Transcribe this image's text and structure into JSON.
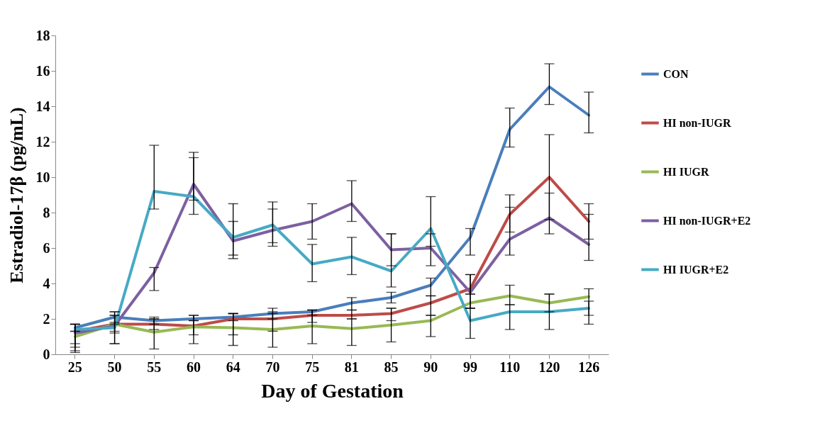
{
  "chart_data": {
    "type": "line",
    "xlabel": "Day of Gestation",
    "ylabel": "Estradiol-17β (pg/mL)",
    "categories": [
      "25",
      "50",
      "55",
      "60",
      "64",
      "70",
      "75",
      "81",
      "85",
      "90",
      "99",
      "110",
      "120",
      "126"
    ],
    "ylim": [
      0,
      18
    ],
    "yticks": [
      0,
      2,
      4,
      6,
      8,
      10,
      12,
      14,
      16,
      18
    ],
    "grid": false,
    "legend": "right",
    "marker": "none",
    "line_style": "solid",
    "series": [
      {
        "name": "CON",
        "color": "#4a7ebb",
        "values": [
          1.5,
          2.1,
          1.9,
          2.0,
          2.1,
          2.3,
          2.4,
          2.9,
          3.2,
          3.9,
          6.6,
          12.7,
          15.1,
          13.5
        ],
        "errors": [
          [
            1.3,
            1.7
          ],
          [
            1.7,
            2.4
          ],
          [
            1.7,
            2.1
          ],
          [
            1.9,
            2.2
          ],
          [
            1.9,
            2.3
          ],
          [
            2.0,
            2.6
          ],
          [
            2.2,
            2.5
          ],
          [
            2.5,
            3.2
          ],
          [
            2.9,
            3.5
          ],
          [
            3.3,
            4.3
          ],
          [
            5.6,
            7.1
          ],
          [
            11.7,
            13.9
          ],
          [
            14.1,
            16.4
          ],
          [
            12.5,
            14.8
          ]
        ]
      },
      {
        "name": "HI non-IUGR",
        "color": "#be4b48",
        "values": [
          1.3,
          1.7,
          1.7,
          1.6,
          2.0,
          2.0,
          2.2,
          2.2,
          2.3,
          2.9,
          3.7,
          7.9,
          10.0,
          7.5
        ],
        "errors": [
          [
            0.6,
            1.7
          ],
          [
            1.2,
            2.2
          ],
          [
            1.4,
            2.0
          ],
          [
            0.6,
            2.2
          ],
          [
            1.1,
            2.3
          ],
          [
            1.3,
            2.4
          ],
          [
            1.8,
            2.5
          ],
          [
            2.0,
            2.5
          ],
          [
            1.9,
            2.6
          ],
          [
            2.2,
            3.3
          ],
          [
            3.4,
            4.5
          ],
          [
            6.9,
            9.0
          ],
          [
            7.6,
            12.4
          ],
          [
            6.5,
            8.5
          ]
        ]
      },
      {
        "name": "HI IUGR",
        "color": "#98b954",
        "values": [
          1.0,
          1.7,
          1.25,
          1.55,
          1.5,
          1.4,
          1.6,
          1.45,
          1.65,
          1.9,
          2.9,
          3.3,
          2.9,
          3.25
        ],
        "errors": [
          [
            0.1,
            1.3
          ],
          [
            0.6,
            2.2
          ],
          [
            0.3,
            2.0
          ],
          [
            1.1,
            1.9
          ],
          [
            0.5,
            2.3
          ],
          [
            0.4,
            2.3
          ],
          [
            0.6,
            2.5
          ],
          [
            0.5,
            2.0
          ],
          [
            0.7,
            2.6
          ],
          [
            1.0,
            2.2
          ],
          [
            2.6,
            3.4
          ],
          [
            2.8,
            3.9
          ],
          [
            2.4,
            3.4
          ],
          [
            2.2,
            3.7
          ]
        ]
      },
      {
        "name": "HI non-IUGR+E2",
        "color": "#7d60a0",
        "values": [
          1.2,
          1.6,
          4.6,
          9.6,
          6.4,
          7.0,
          7.5,
          8.5,
          5.9,
          6.0,
          3.5,
          6.5,
          7.7,
          6.2
        ],
        "errors": [
          [
            0.2,
            1.7
          ],
          [
            0.6,
            2.4
          ],
          [
            3.6,
            4.9
          ],
          [
            7.9,
            11.4
          ],
          [
            5.4,
            7.5
          ],
          [
            6.1,
            8.2
          ],
          [
            6.5,
            8.5
          ],
          [
            7.5,
            9.8
          ],
          [
            5.0,
            6.8
          ],
          [
            5.0,
            6.8
          ],
          [
            2.6,
            4.5
          ],
          [
            5.6,
            8.3
          ],
          [
            6.8,
            9.1
          ],
          [
            5.3,
            7.9
          ]
        ]
      },
      {
        "name": "HI IUGR+E2",
        "color": "#46aac5",
        "values": [
          1.4,
          1.5,
          9.2,
          8.9,
          6.6,
          7.3,
          5.1,
          5.5,
          4.7,
          7.1,
          1.9,
          2.4,
          2.4,
          2.6
        ],
        "errors": [
          [
            0.4,
            1.7
          ],
          [
            1.3,
            1.8
          ],
          [
            8.2,
            11.8
          ],
          [
            8.7,
            11.1
          ],
          [
            5.6,
            8.5
          ],
          [
            6.3,
            8.6
          ],
          [
            4.1,
            6.2
          ],
          [
            4.5,
            6.6
          ],
          [
            3.8,
            6.8
          ],
          [
            6.1,
            8.9
          ],
          [
            0.9,
            2.6
          ],
          [
            1.4,
            2.8
          ],
          [
            1.4,
            3.4
          ],
          [
            1.7,
            3.0
          ]
        ]
      }
    ]
  }
}
